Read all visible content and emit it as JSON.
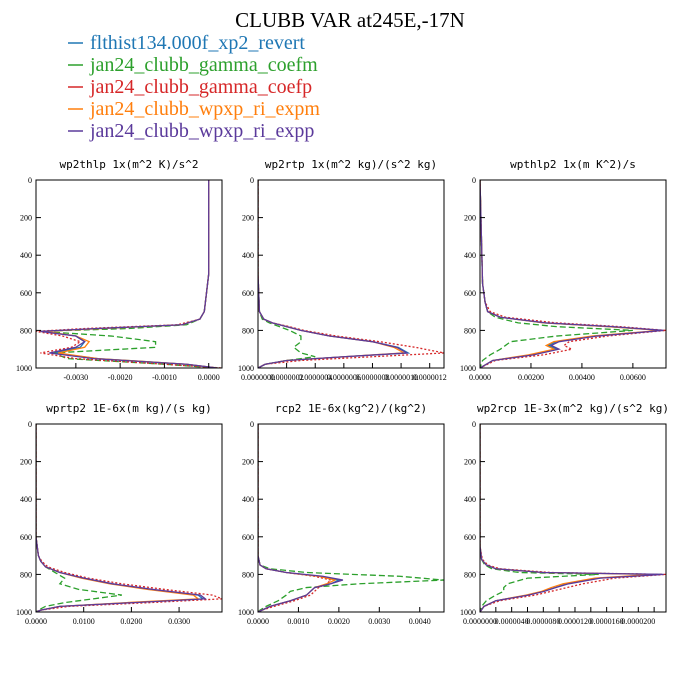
{
  "title": "CLUBB VAR at245E,-17N",
  "legend": [
    {
      "label": "flthist134.000f_xp2_revert",
      "color": "#1f77b4",
      "dash": "solid"
    },
    {
      "label": "jan24_clubb_gamma_coefm",
      "color": "#2ca02c",
      "dash": "dash"
    },
    {
      "label": "jan24_clubb_gamma_coefp",
      "color": "#d62728",
      "dash": "dot"
    },
    {
      "label": "jan24_clubb_wpxp_ri_expm",
      "color": "#ff7f0e",
      "dash": "solid"
    },
    {
      "label": "jan24_clubb_wpxp_ri_expp",
      "color": "#5b3a9b",
      "dash": "solid"
    }
  ],
  "chart_data": [
    {
      "type": "line",
      "title": "wp2thlp  1x(m^2 K)/s^2",
      "xlim": [
        -0.0039,
        0.0003
      ],
      "ylim": [
        0,
        1000
      ],
      "xticks": [
        -0.003,
        -0.002,
        -0.001,
        0.0
      ],
      "xtick_labels": [
        "-0.0030",
        "-0.0020",
        "-0.0010",
        "0.0000"
      ],
      "yticks": [
        0,
        200,
        400,
        600,
        800,
        1000
      ],
      "ytick_labels": [
        "0",
        "200",
        "400",
        "600",
        "800",
        "1000"
      ],
      "y": [
        0,
        300,
        500,
        600,
        700,
        740,
        770,
        790,
        805,
        830,
        860,
        890,
        920,
        950,
        980,
        1000
      ],
      "series": [
        {
          "name": "flthist134.000f_xp2_revert",
          "x": [
            0.0,
            0.0,
            0.0,
            -5e-05,
            -0.0001,
            -0.0002,
            -0.0006,
            -0.0025,
            -0.0038,
            -0.003,
            -0.0028,
            -0.0029,
            -0.0035,
            -0.0025,
            -0.0005,
            0.0002
          ]
        },
        {
          "name": "jan24_clubb_gamma_coefm",
          "x": [
            0.0,
            0.0,
            0.0,
            -5e-05,
            -0.0001,
            -0.0002,
            -0.0005,
            -0.0018,
            -0.0038,
            -0.0022,
            -0.0012,
            -0.0012,
            -0.0035,
            -0.0032,
            -0.001,
            0.0002
          ]
        },
        {
          "name": "jan24_clubb_gamma_coefp",
          "x": [
            0.0,
            0.0,
            0.0,
            -5e-05,
            -0.0001,
            -0.0002,
            -0.0007,
            -0.0028,
            -0.0039,
            -0.0033,
            -0.0029,
            -0.0031,
            -0.0038,
            -0.003,
            -0.001,
            0.0003
          ]
        },
        {
          "name": "jan24_clubb_wpxp_ri_expm",
          "x": [
            0.0,
            0.0,
            0.0,
            -5e-05,
            -0.0001,
            -0.0002,
            -0.0006,
            -0.0024,
            -0.0037,
            -0.003,
            -0.0027,
            -0.0028,
            -0.0034,
            -0.0025,
            -0.0005,
            0.0002
          ]
        },
        {
          "name": "jan24_clubb_wpxp_ri_expp",
          "x": [
            0.0,
            0.0,
            0.0,
            -5e-05,
            -0.0001,
            -0.0002,
            -0.0006,
            -0.0025,
            -0.0038,
            -0.003,
            -0.0028,
            -0.003,
            -0.0036,
            -0.0026,
            -0.0005,
            0.0002
          ]
        }
      ]
    },
    {
      "type": "line",
      "title": "wp2rtp  1x(m^2 kg)/(s^2 kg)",
      "xlim": [
        0,
        1.3e-06
      ],
      "ylim": [
        0,
        1000
      ],
      "xticks": [
        0,
        2e-07,
        4e-07,
        6e-07,
        8e-07,
        1e-06,
        1.2e-06
      ],
      "xtick_labels": [
        "0.0000000",
        "0.0000002",
        "0.0000004",
        "0.0000006",
        "0.0000008",
        "0.0000010",
        "0.0000012"
      ],
      "yticks": [
        0,
        200,
        400,
        600,
        800,
        1000
      ],
      "ytick_labels": [
        "0",
        "200",
        "400",
        "600",
        "800",
        "1000"
      ],
      "y": [
        0,
        500,
        700,
        740,
        760,
        780,
        800,
        830,
        860,
        890,
        920,
        940,
        960,
        980,
        1000
      ],
      "series": [
        {
          "name": "flthist134.000f_xp2_revert",
          "x": [
            0,
            0,
            1e-08,
            4e-08,
            1e-07,
            2e-07,
            3e-07,
            5e-07,
            8e-07,
            9.8e-07,
            1.05e-06,
            6e-07,
            2e-07,
            5e-08,
            0
          ]
        },
        {
          "name": "jan24_clubb_gamma_coefm",
          "x": [
            0,
            0,
            1e-08,
            3e-08,
            8e-08,
            1.5e-07,
            2.2e-07,
            3e-07,
            3e-07,
            2.5e-07,
            3e-07,
            4e-07,
            2e-07,
            5e-08,
            0
          ]
        },
        {
          "name": "jan24_clubb_gamma_coefp",
          "x": [
            0,
            0,
            1e-08,
            4e-08,
            1e-07,
            2.2e-07,
            3.2e-07,
            5.5e-07,
            8.5e-07,
            1.1e-06,
            1.3e-06,
            8e-07,
            3e-07,
            5e-08,
            0
          ]
        },
        {
          "name": "jan24_clubb_wpxp_ri_expm",
          "x": [
            0,
            0,
            1e-08,
            4e-08,
            1e-07,
            2e-07,
            3e-07,
            5e-07,
            8e-07,
            9.5e-07,
            1.02e-06,
            6e-07,
            2e-07,
            5e-08,
            0
          ]
        },
        {
          "name": "jan24_clubb_wpxp_ri_expp",
          "x": [
            0,
            0,
            1e-08,
            4e-08,
            1e-07,
            2e-07,
            3e-07,
            5e-07,
            8e-07,
            9.7e-07,
            1.04e-06,
            6e-07,
            2e-07,
            5e-08,
            0
          ]
        }
      ]
    },
    {
      "type": "line",
      "title": "wpthlp2  1x(m K^2)/s",
      "xlim": [
        0,
        0.0073
      ],
      "ylim": [
        0,
        1000
      ],
      "xticks": [
        0.0,
        0.002,
        0.004,
        0.006
      ],
      "xtick_labels": [
        "0.0000",
        "0.00200",
        "0.00400",
        "0.00600"
      ],
      "yticks": [
        0,
        200,
        400,
        600,
        800,
        1000
      ],
      "ytick_labels": [
        "0",
        "200",
        "400",
        "600",
        "800",
        "1000"
      ],
      "y": [
        0,
        550,
        650,
        700,
        730,
        760,
        780,
        800,
        830,
        860,
        880,
        900,
        930,
        960,
        1000
      ],
      "series": [
        {
          "name": "flthist134.000f_xp2_revert",
          "x": [
            0,
            0.0001,
            0.0002,
            0.0003,
            0.0008,
            0.0025,
            0.005,
            0.0072,
            0.0045,
            0.003,
            0.0027,
            0.003,
            0.002,
            0.0005,
            0
          ]
        },
        {
          "name": "jan24_clubb_gamma_coefm",
          "x": [
            0,
            0.0001,
            0.0002,
            0.0003,
            0.0006,
            0.0015,
            0.003,
            0.006,
            0.003,
            0.0012,
            0.001,
            0.0008,
            0.0004,
            0.0001,
            0
          ]
        },
        {
          "name": "jan24_clubb_gamma_coefp",
          "x": [
            0,
            0.0001,
            0.0002,
            0.0004,
            0.001,
            0.003,
            0.0055,
            0.0073,
            0.005,
            0.0035,
            0.0033,
            0.0036,
            0.0025,
            0.0006,
            0
          ]
        },
        {
          "name": "jan24_clubb_wpxp_ri_expm",
          "x": [
            0,
            0.0001,
            0.0002,
            0.0003,
            0.0008,
            0.0025,
            0.005,
            0.0071,
            0.0044,
            0.0029,
            0.0026,
            0.0029,
            0.0019,
            0.0005,
            0
          ]
        },
        {
          "name": "jan24_clubb_wpxp_ri_expp",
          "x": [
            0,
            0.0001,
            0.0002,
            0.0003,
            0.0008,
            0.0026,
            0.0052,
            0.0072,
            0.0046,
            0.0031,
            0.0028,
            0.0031,
            0.0021,
            0.0005,
            0
          ]
        }
      ]
    },
    {
      "type": "line",
      "title": "wprtp2  1E-6x(m kg)/(s kg)",
      "xlim": [
        0,
        0.039
      ],
      "ylim": [
        0,
        1000
      ],
      "xticks": [
        0.0,
        0.01,
        0.02,
        0.03
      ],
      "xtick_labels": [
        "0.0000",
        "0.0100",
        "0.0200",
        "0.0300"
      ],
      "yticks": [
        0,
        200,
        400,
        600,
        800,
        1000
      ],
      "ytick_labels": [
        "0",
        "200",
        "400",
        "600",
        "800",
        "1000"
      ],
      "y": [
        0,
        600,
        700,
        730,
        760,
        790,
        820,
        850,
        880,
        910,
        930,
        950,
        970,
        990,
        1000
      ],
      "series": [
        {
          "name": "flthist134.000f_xp2_revert",
          "x": [
            0,
            0,
            0.0005,
            0.001,
            0.002,
            0.005,
            0.01,
            0.016,
            0.024,
            0.034,
            0.035,
            0.02,
            0.005,
            0.001,
            0
          ]
        },
        {
          "name": "jan24_clubb_gamma_coefm",
          "x": [
            0,
            0,
            0.0005,
            0.001,
            0.002,
            0.004,
            0.006,
            0.005,
            0.009,
            0.018,
            0.012,
            0.006,
            0.002,
            0.0005,
            0
          ]
        },
        {
          "name": "jan24_clubb_gamma_coefp",
          "x": [
            0,
            0,
            0.0005,
            0.0012,
            0.0025,
            0.006,
            0.011,
            0.018,
            0.027,
            0.037,
            0.039,
            0.024,
            0.007,
            0.001,
            0
          ]
        },
        {
          "name": "jan24_clubb_wpxp_ri_expm",
          "x": [
            0,
            0,
            0.0005,
            0.001,
            0.002,
            0.005,
            0.0095,
            0.0155,
            0.0235,
            0.033,
            0.034,
            0.019,
            0.005,
            0.001,
            0
          ]
        },
        {
          "name": "jan24_clubb_wpxp_ri_expp",
          "x": [
            0,
            0,
            0.0005,
            0.001,
            0.002,
            0.005,
            0.01,
            0.016,
            0.0245,
            0.0345,
            0.0355,
            0.0205,
            0.005,
            0.001,
            0
          ]
        }
      ]
    },
    {
      "type": "line",
      "title": "rcp2  1E-6x(kg^2)/(kg^2)",
      "xlim": [
        0,
        0.0046
      ],
      "ylim": [
        0,
        1000
      ],
      "xticks": [
        0.0,
        0.001,
        0.002,
        0.003,
        0.004
      ],
      "xtick_labels": [
        "0.0000",
        "0.0010",
        "0.0020",
        "0.0030",
        "0.0040"
      ],
      "yticks": [
        0,
        200,
        400,
        600,
        800,
        1000
      ],
      "ytick_labels": [
        "0",
        "200",
        "400",
        "600",
        "800",
        "1000"
      ],
      "y": [
        0,
        700,
        750,
        770,
        790,
        810,
        830,
        850,
        870,
        890,
        910,
        940,
        970,
        990,
        1000
      ],
      "series": [
        {
          "name": "flthist134.000f_xp2_revert",
          "x": [
            0,
            0,
            5e-05,
            0.0002,
            0.0007,
            0.0015,
            0.002,
            0.0018,
            0.0014,
            0.0013,
            0.0012,
            0.0008,
            0.0003,
            0.0001,
            0
          ]
        },
        {
          "name": "jan24_clubb_gamma_coefm",
          "x": [
            0,
            0,
            5e-05,
            0.0003,
            0.0012,
            0.0035,
            0.0046,
            0.0025,
            0.0012,
            0.0008,
            0.0007,
            0.0005,
            0.0002,
            5e-05,
            0
          ]
        },
        {
          "name": "jan24_clubb_gamma_coefp",
          "x": [
            0,
            0,
            5e-05,
            0.0002,
            0.0007,
            0.0014,
            0.0018,
            0.0017,
            0.0015,
            0.0014,
            0.0013,
            0.0009,
            0.0004,
            0.0001,
            0
          ]
        },
        {
          "name": "jan24_clubb_wpxp_ri_expm",
          "x": [
            0,
            0,
            5e-05,
            0.0002,
            0.0007,
            0.0015,
            0.0019,
            0.0017,
            0.0014,
            0.0013,
            0.0012,
            0.0008,
            0.0003,
            0.0001,
            0
          ]
        },
        {
          "name": "jan24_clubb_wpxp_ri_expp",
          "x": [
            0,
            0,
            5e-05,
            0.0002,
            0.0007,
            0.0016,
            0.0021,
            0.0018,
            0.0014,
            0.0013,
            0.0012,
            0.0008,
            0.0003,
            0.0001,
            0
          ]
        }
      ]
    },
    {
      "type": "line",
      "title": "wp2rcp  1E-3x(m^2 kg)/(s^2 kg)",
      "xlim": [
        0,
        2.35e-05
      ],
      "ylim": [
        0,
        1000
      ],
      "xticks": [
        0,
        2e-06,
        4e-06,
        6e-06,
        8e-06,
        1e-05,
        1.2e-05,
        1.4e-05,
        1.6e-05,
        1.8e-05,
        2e-05,
        2.2e-05
      ],
      "xtick_labels": [
        "0.0000000",
        "",
        "0.0000040",
        "",
        "0.0000080",
        "",
        "0.0000120",
        "",
        "0.0000160",
        "",
        "0.0000200",
        ""
      ],
      "yticks": [
        0,
        200,
        400,
        600,
        800,
        1000
      ],
      "ytick_labels": [
        "0",
        "200",
        "400",
        "600",
        "800",
        "1000"
      ],
      "y": [
        0,
        650,
        720,
        750,
        770,
        790,
        800,
        820,
        850,
        870,
        890,
        910,
        940,
        970,
        1000
      ],
      "series": [
        {
          "name": "flthist134.000f_xp2_revert",
          "x": [
            0,
            0,
            2e-07,
            8e-07,
            2e-06,
            8e-06,
            2.3e-05,
            1.5e-05,
            1.1e-05,
            9.5e-06,
            8e-06,
            6e-06,
            2e-06,
            5e-07,
            0
          ]
        },
        {
          "name": "jan24_clubb_gamma_coefm",
          "x": [
            0,
            0,
            2e-07,
            6e-07,
            1.5e-06,
            5e-06,
            1.5e-05,
            6e-06,
            3.5e-06,
            3e-06,
            3e-06,
            2e-06,
            8e-07,
            2e-07,
            0
          ]
        },
        {
          "name": "jan24_clubb_gamma_coefp",
          "x": [
            0,
            0,
            3e-07,
            1e-06,
            2.5e-06,
            9e-06,
            2.35e-05,
            1.7e-05,
            1.3e-05,
            1.1e-05,
            9e-06,
            7e-06,
            2.5e-06,
            5e-07,
            0
          ]
        },
        {
          "name": "jan24_clubb_wpxp_ri_expm",
          "x": [
            0,
            0,
            2e-07,
            8e-07,
            2e-06,
            8e-06,
            2.2e-05,
            1.45e-05,
            1.05e-05,
            9e-06,
            7.8e-06,
            5.8e-06,
            2e-06,
            5e-07,
            0
          ]
        },
        {
          "name": "jan24_clubb_wpxp_ri_expp",
          "x": [
            0,
            0,
            2e-07,
            8e-07,
            2e-06,
            8e-06,
            2.32e-05,
            1.52e-05,
            1.12e-05,
            9.6e-06,
            8.1e-06,
            6.1e-06,
            2e-06,
            5e-07,
            0
          ]
        }
      ]
    }
  ]
}
